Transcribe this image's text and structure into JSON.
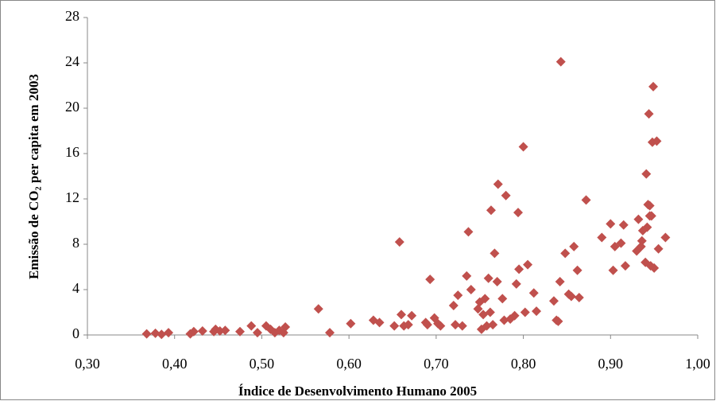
{
  "chart_data": {
    "type": "scatter",
    "xlabel": "Índice de Desenvolvimento Humano 2005",
    "ylabel": "Emissão de CO₂ per capita em 2003",
    "color": "#c0504d",
    "grid": false,
    "xlim": [
      0.3,
      1.0
    ],
    "xticks": [
      {
        "value": 0.3,
        "label": "0,30"
      },
      {
        "value": 0.4,
        "label": "0,40"
      },
      {
        "value": 0.5,
        "label": "0,50"
      },
      {
        "value": 0.6,
        "label": "0,60"
      },
      {
        "value": 0.7,
        "label": "0,70"
      },
      {
        "value": 0.8,
        "label": "0,80"
      },
      {
        "value": 0.9,
        "label": "0,90"
      },
      {
        "value": 1.0,
        "label": "1,00"
      }
    ],
    "ylim": [
      0,
      28
    ],
    "yticks": [
      0,
      4,
      8,
      12,
      16,
      20,
      24,
      28
    ],
    "x": [
      0.368,
      0.378,
      0.385,
      0.393,
      0.418,
      0.422,
      0.432,
      0.445,
      0.447,
      0.452,
      0.458,
      0.475,
      0.488,
      0.495,
      0.505,
      0.51,
      0.515,
      0.52,
      0.525,
      0.527,
      0.565,
      0.578,
      0.602,
      0.628,
      0.635,
      0.652,
      0.658,
      0.66,
      0.663,
      0.668,
      0.672,
      0.688,
      0.69,
      0.693,
      0.698,
      0.702,
      0.705,
      0.72,
      0.722,
      0.725,
      0.73,
      0.735,
      0.737,
      0.74,
      0.748,
      0.75,
      0.752,
      0.754,
      0.756,
      0.758,
      0.76,
      0.762,
      0.763,
      0.765,
      0.767,
      0.77,
      0.771,
      0.776,
      0.778,
      0.78,
      0.785,
      0.79,
      0.792,
      0.794,
      0.795,
      0.8,
      0.802,
      0.805,
      0.812,
      0.815,
      0.835,
      0.838,
      0.84,
      0.842,
      0.843,
      0.848,
      0.852,
      0.855,
      0.858,
      0.862,
      0.864,
      0.872,
      0.89,
      0.9,
      0.903,
      0.905,
      0.912,
      0.915,
      0.917,
      0.93,
      0.932,
      0.935,
      0.936,
      0.937,
      0.94,
      0.941,
      0.942,
      0.943,
      0.944,
      0.945,
      0.945,
      0.946,
      0.947,
      0.948,
      0.949,
      0.95,
      0.953,
      0.955,
      0.963
    ],
    "values": [
      0.1,
      0.15,
      0.05,
      0.2,
      0.1,
      0.3,
      0.35,
      0.3,
      0.5,
      0.35,
      0.4,
      0.3,
      0.8,
      0.2,
      0.8,
      0.5,
      0.2,
      0.4,
      0.2,
      0.7,
      2.3,
      0.2,
      1.0,
      1.3,
      1.1,
      0.8,
      8.2,
      1.8,
      0.8,
      0.9,
      1.7,
      1.1,
      0.9,
      4.9,
      1.5,
      1.0,
      0.8,
      2.6,
      0.9,
      3.5,
      0.8,
      5.2,
      9.1,
      4.0,
      2.3,
      2.9,
      0.5,
      1.8,
      3.2,
      0.8,
      5.0,
      2.0,
      11.0,
      0.9,
      7.2,
      4.7,
      13.3,
      3.2,
      1.3,
      12.3,
      1.4,
      1.7,
      4.5,
      10.8,
      5.8,
      16.6,
      2.0,
      6.2,
      3.7,
      2.1,
      3.0,
      1.3,
      1.2,
      4.7,
      24.1,
      7.2,
      3.6,
      3.4,
      7.8,
      5.7,
      3.3,
      11.9,
      8.6,
      9.8,
      5.7,
      7.8,
      8.1,
      9.7,
      6.1,
      7.4,
      10.2,
      7.8,
      8.3,
      9.2,
      6.4,
      14.2,
      9.5,
      11.5,
      19.5,
      10.5,
      11.4,
      6.1,
      10.5,
      17.0,
      21.9,
      5.9,
      17.1,
      7.6,
      8.6
    ]
  }
}
